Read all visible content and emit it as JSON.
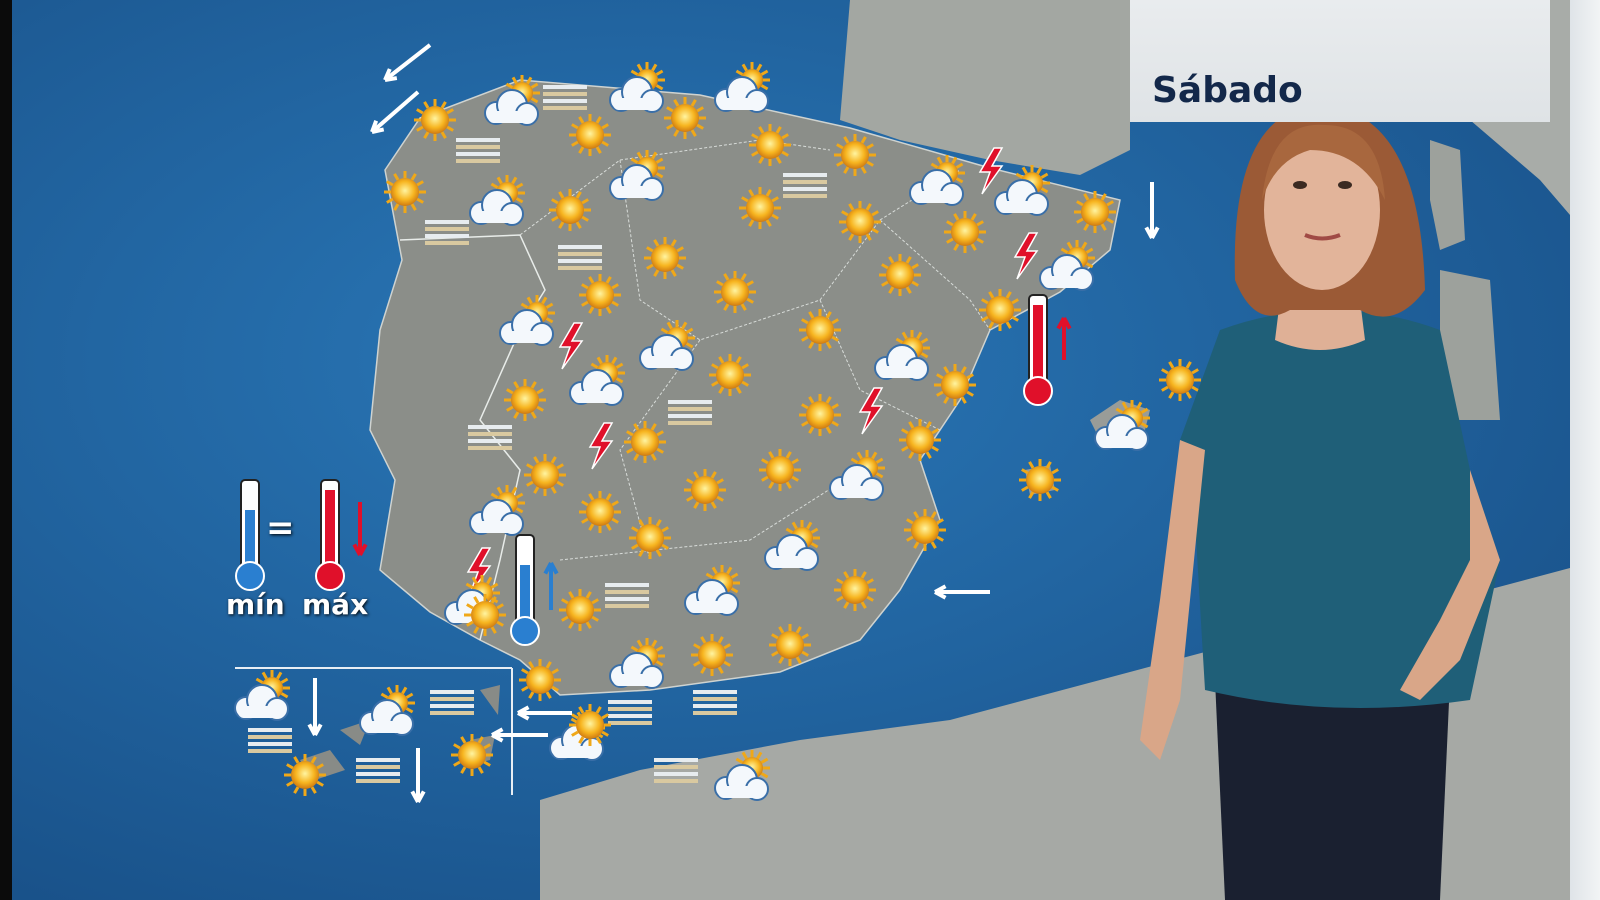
{
  "header": {
    "day_label": "Sábado"
  },
  "legend": {
    "min_label": "mín",
    "max_label": "máx",
    "equal_sign": "="
  },
  "colors": {
    "sea": "#1f5f9c",
    "land": "#8c8f8a",
    "title_text": "#13284a",
    "thermo_cold": "#2a7fd0",
    "thermo_hot": "#e0102a"
  },
  "icon_types": {
    "s": "sun-icon",
    "c": "cloud-sun-icon",
    "f": "fog-icon",
    "t": "storm-lightning-icon"
  },
  "forecast_icons": [
    "c",
    "f",
    "c",
    "c",
    "s",
    "s",
    "s",
    "f",
    "s",
    "s",
    "c",
    "f",
    "c",
    "t",
    "c",
    "s",
    "s",
    "c",
    "s",
    "s",
    "s",
    "s",
    "f",
    "f",
    "s",
    "s",
    "t",
    "c",
    "s",
    "s",
    "s",
    "c",
    "t",
    "c",
    "s",
    "c",
    "s",
    "c",
    "s",
    "s",
    "f",
    "s",
    "t",
    "f",
    "t",
    "s",
    "s",
    "s",
    "s",
    "s",
    "c",
    "s",
    "c",
    "s",
    "s",
    "s",
    "c",
    "t",
    "c",
    "s",
    "s",
    "f",
    "c",
    "s",
    "s",
    "s",
    "c",
    "s",
    "f",
    "f",
    "c",
    "s",
    "f",
    "c",
    "s",
    "c",
    "c",
    "f",
    "s",
    "c",
    "f",
    "f",
    "s"
  ]
}
